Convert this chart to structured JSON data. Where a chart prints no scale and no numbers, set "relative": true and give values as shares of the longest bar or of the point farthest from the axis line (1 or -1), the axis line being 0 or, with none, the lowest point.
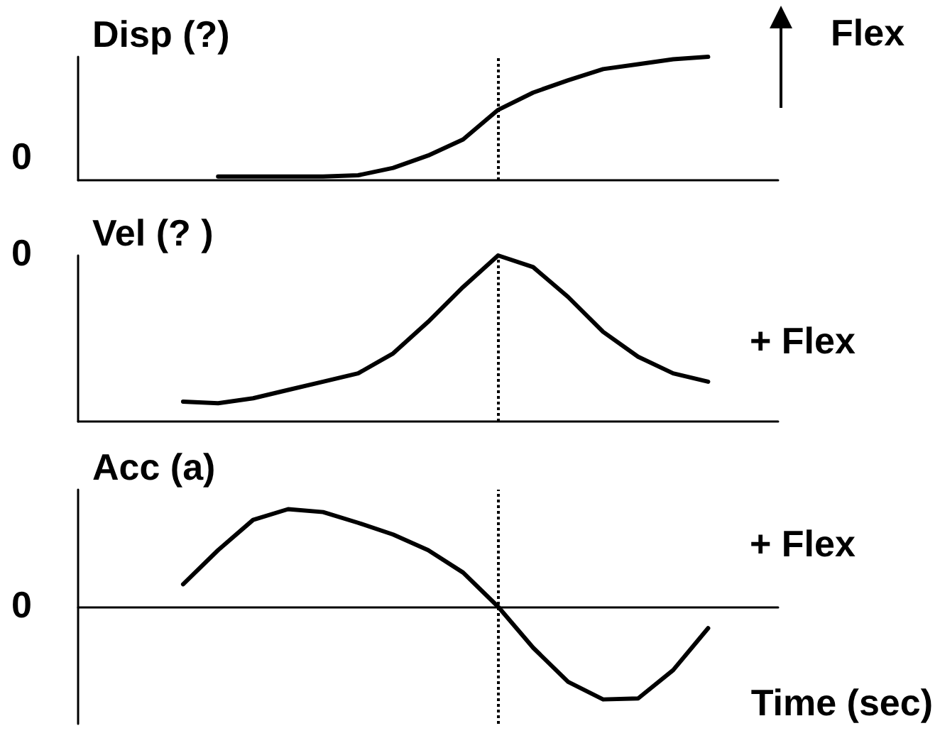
{
  "chart_data": [
    {
      "type": "line",
      "ylabel": "Disp (?)",
      "relative": true,
      "categories": [
        null,
        null,
        null,
        null,
        null,
        null,
        null,
        null,
        null,
        null,
        null,
        null,
        null,
        null,
        null,
        null,
        null,
        null,
        null,
        null,
        null
      ],
      "series": [
        {
          "color": "#000000",
          "values": [
            null,
            null,
            null,
            null,
            0.03,
            0.03,
            0.03,
            0.03,
            0.04,
            0.1,
            0.2,
            0.33,
            0.57,
            0.71,
            0.81,
            0.9,
            0.94,
            0.98,
            1,
            null,
            null
          ]
        }
      ],
      "annotations": [
        "0",
        "Flex"
      ],
      "marker": "none",
      "line_style": "solid"
    },
    {
      "type": "line",
      "ylabel": "Vel (? )",
      "relative": true,
      "categories": [
        null,
        null,
        null,
        null,
        null,
        null,
        null,
        null,
        null,
        null,
        null,
        null,
        null,
        null,
        null,
        null,
        null,
        null,
        null,
        null,
        null
      ],
      "series": [
        {
          "color": "#000000",
          "values": [
            null,
            null,
            null,
            0.12,
            0.11,
            0.14,
            0.19,
            0.24,
            0.29,
            0.41,
            0.6,
            0.81,
            1,
            0.93,
            0.75,
            0.54,
            0.39,
            0.29,
            0.24,
            null,
            null
          ]
        }
      ],
      "annotations": [
        "0",
        "+ Flex"
      ],
      "marker": "none",
      "line_style": "solid"
    },
    {
      "type": "line",
      "ylabel": "Acc (a)",
      "xlabel": "Time (sec)",
      "relative": true,
      "categories": [
        null,
        null,
        null,
        null,
        null,
        null,
        null,
        null,
        null,
        null,
        null,
        null,
        null,
        null,
        null,
        null,
        null,
        null,
        null,
        null,
        null
      ],
      "series": [
        {
          "color": "#000000",
          "values": [
            null,
            null,
            null,
            0.23,
            0.58,
            0.89,
            1,
            0.97,
            0.86,
            0.74,
            0.58,
            0.35,
            0,
            -0.42,
            -0.77,
            -0.95,
            -0.94,
            -0.65,
            -0.22,
            null,
            null
          ]
        }
      ],
      "annotations": [
        "0",
        "+ Flex"
      ],
      "marker": "none",
      "line_style": "solid"
    }
  ]
}
